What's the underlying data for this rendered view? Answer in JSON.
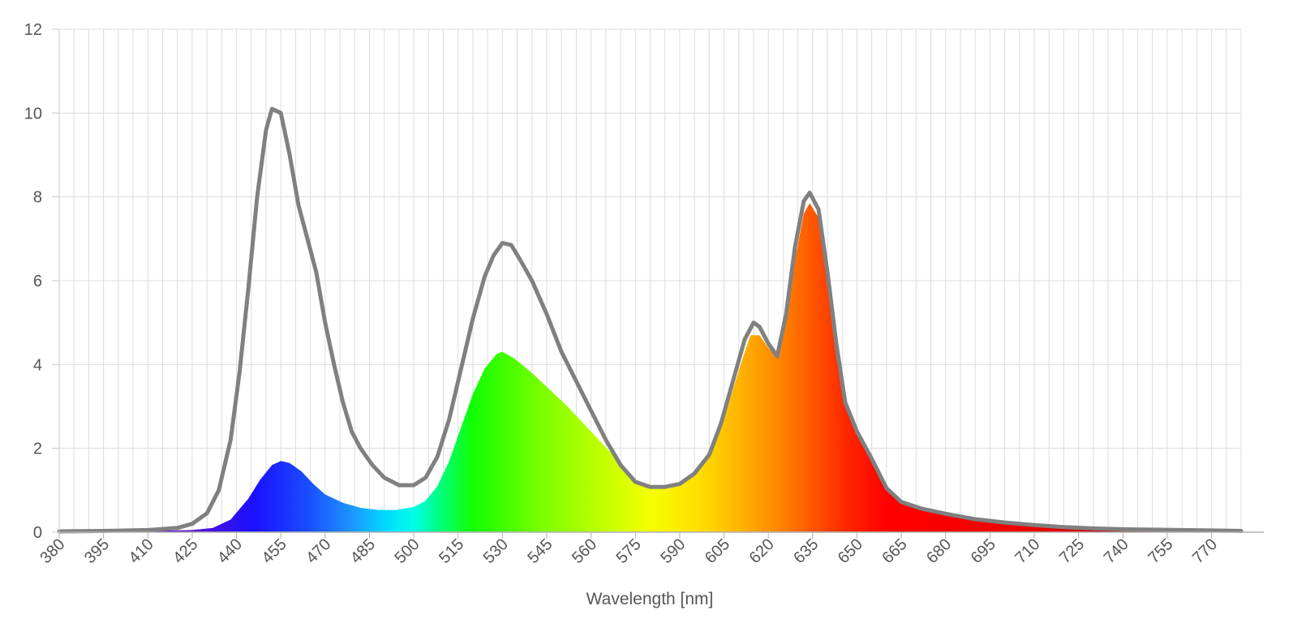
{
  "chart_data": {
    "type": "area",
    "title": "",
    "xlabel": "Wavelength [nm]",
    "ylabel": "",
    "xlim": [
      380,
      780
    ],
    "ylim": [
      0,
      12
    ],
    "grid": true,
    "legend": "none",
    "x_ticks": [
      "380",
      "395",
      "410",
      "425",
      "440",
      "455",
      "470",
      "485",
      "500",
      "515",
      "530",
      "545",
      "560",
      "575",
      "590",
      "605",
      "620",
      "635",
      "650",
      "665",
      "680",
      "695",
      "710",
      "725",
      "740",
      "755",
      "770"
    ],
    "y_ticks": [
      "0",
      "2",
      "4",
      "6",
      "8",
      "10",
      "12"
    ],
    "series": [
      {
        "style": "filled-spectrum",
        "color": "spectral",
        "points": [
          [
            380,
            0.02
          ],
          [
            395,
            0.03
          ],
          [
            410,
            0.03
          ],
          [
            425,
            0.05
          ],
          [
            432,
            0.1
          ],
          [
            438,
            0.3
          ],
          [
            444,
            0.8
          ],
          [
            448,
            1.25
          ],
          [
            452,
            1.6
          ],
          [
            455,
            1.7
          ],
          [
            458,
            1.65
          ],
          [
            462,
            1.45
          ],
          [
            466,
            1.15
          ],
          [
            470,
            0.9
          ],
          [
            476,
            0.7
          ],
          [
            482,
            0.58
          ],
          [
            488,
            0.53
          ],
          [
            494,
            0.53
          ],
          [
            500,
            0.6
          ],
          [
            504,
            0.75
          ],
          [
            508,
            1.1
          ],
          [
            512,
            1.7
          ],
          [
            516,
            2.5
          ],
          [
            520,
            3.3
          ],
          [
            524,
            3.9
          ],
          [
            528,
            4.25
          ],
          [
            530,
            4.3
          ],
          [
            534,
            4.15
          ],
          [
            540,
            3.8
          ],
          [
            546,
            3.4
          ],
          [
            552,
            3.0
          ],
          [
            558,
            2.55
          ],
          [
            564,
            2.1
          ],
          [
            570,
            1.65
          ],
          [
            575,
            1.25
          ],
          [
            580,
            1.05
          ],
          [
            585,
            1.05
          ],
          [
            590,
            1.15
          ],
          [
            595,
            1.35
          ],
          [
            600,
            1.8
          ],
          [
            604,
            2.5
          ],
          [
            608,
            3.4
          ],
          [
            612,
            4.3
          ],
          [
            614,
            4.7
          ],
          [
            617,
            4.7
          ],
          [
            620,
            4.4
          ],
          [
            623,
            4.15
          ],
          [
            626,
            5.0
          ],
          [
            629,
            6.5
          ],
          [
            632,
            7.6
          ],
          [
            634,
            7.85
          ],
          [
            637,
            7.5
          ],
          [
            640,
            6.0
          ],
          [
            643,
            4.3
          ],
          [
            646,
            3.0
          ],
          [
            650,
            2.4
          ],
          [
            655,
            1.7
          ],
          [
            660,
            1.0
          ],
          [
            665,
            0.7
          ],
          [
            672,
            0.55
          ],
          [
            680,
            0.43
          ],
          [
            690,
            0.3
          ],
          [
            700,
            0.22
          ],
          [
            710,
            0.17
          ],
          [
            720,
            0.12
          ],
          [
            730,
            0.09
          ],
          [
            740,
            0.07
          ],
          [
            750,
            0.06
          ],
          [
            760,
            0.05
          ],
          [
            770,
            0.04
          ],
          [
            780,
            0.03
          ]
        ]
      },
      {
        "style": "line",
        "color": "#808080",
        "points": [
          [
            380,
            0.02
          ],
          [
            395,
            0.03
          ],
          [
            410,
            0.05
          ],
          [
            420,
            0.1
          ],
          [
            425,
            0.2
          ],
          [
            430,
            0.45
          ],
          [
            434,
            1.0
          ],
          [
            438,
            2.2
          ],
          [
            441,
            3.8
          ],
          [
            444,
            5.8
          ],
          [
            447,
            8.0
          ],
          [
            450,
            9.6
          ],
          [
            452,
            10.1
          ],
          [
            455,
            10.0
          ],
          [
            458,
            9.0
          ],
          [
            461,
            7.8
          ],
          [
            464,
            7.0
          ],
          [
            467,
            6.2
          ],
          [
            470,
            5.0
          ],
          [
            473,
            4.0
          ],
          [
            476,
            3.1
          ],
          [
            479,
            2.4
          ],
          [
            482,
            2.0
          ],
          [
            486,
            1.6
          ],
          [
            490,
            1.3
          ],
          [
            495,
            1.12
          ],
          [
            500,
            1.12
          ],
          [
            504,
            1.3
          ],
          [
            508,
            1.8
          ],
          [
            512,
            2.7
          ],
          [
            516,
            3.9
          ],
          [
            520,
            5.1
          ],
          [
            524,
            6.1
          ],
          [
            527,
            6.6
          ],
          [
            530,
            6.9
          ],
          [
            533,
            6.85
          ],
          [
            536,
            6.5
          ],
          [
            540,
            6.0
          ],
          [
            545,
            5.2
          ],
          [
            550,
            4.3
          ],
          [
            555,
            3.6
          ],
          [
            560,
            2.9
          ],
          [
            565,
            2.2
          ],
          [
            570,
            1.6
          ],
          [
            575,
            1.2
          ],
          [
            580,
            1.08
          ],
          [
            585,
            1.08
          ],
          [
            590,
            1.15
          ],
          [
            595,
            1.4
          ],
          [
            600,
            1.85
          ],
          [
            604,
            2.6
          ],
          [
            608,
            3.6
          ],
          [
            612,
            4.6
          ],
          [
            615,
            5.0
          ],
          [
            617,
            4.9
          ],
          [
            620,
            4.5
          ],
          [
            623,
            4.2
          ],
          [
            626,
            5.2
          ],
          [
            629,
            6.8
          ],
          [
            632,
            7.9
          ],
          [
            634,
            8.1
          ],
          [
            637,
            7.7
          ],
          [
            640,
            6.2
          ],
          [
            643,
            4.5
          ],
          [
            646,
            3.1
          ],
          [
            650,
            2.4
          ],
          [
            655,
            1.75
          ],
          [
            660,
            1.05
          ],
          [
            665,
            0.72
          ],
          [
            672,
            0.56
          ],
          [
            680,
            0.44
          ],
          [
            690,
            0.31
          ],
          [
            700,
            0.23
          ],
          [
            710,
            0.17
          ],
          [
            720,
            0.12
          ],
          [
            730,
            0.09
          ],
          [
            740,
            0.07
          ],
          [
            750,
            0.06
          ],
          [
            760,
            0.05
          ],
          [
            770,
            0.04
          ],
          [
            780,
            0.03
          ]
        ]
      }
    ]
  }
}
